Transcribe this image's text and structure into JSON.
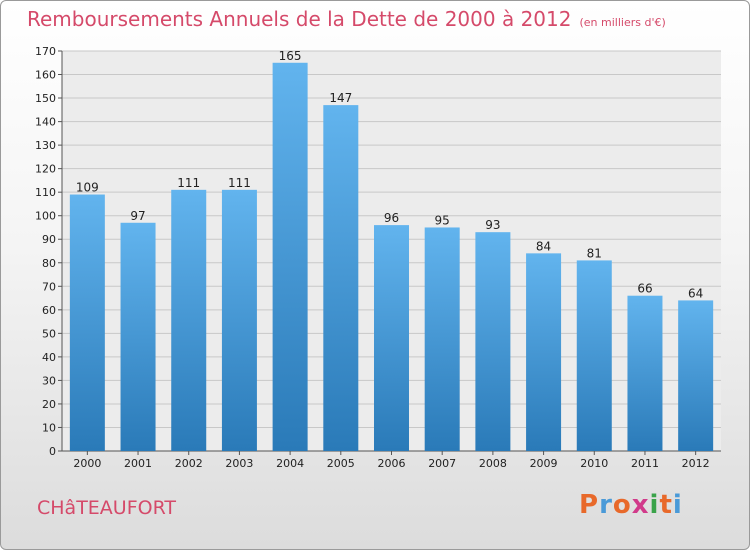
{
  "title": "Remboursements Annuels de la Dette de 2000 à 2012",
  "unit_note": "(en milliers d'€)",
  "city": "CHâTEAUFORT",
  "brand": "Proxiti",
  "colors": {
    "title": "#d54a6a",
    "bar_top": "#62b4ee",
    "bar_bottom": "#2a7ab8",
    "brand_letters": [
      "#e8692a",
      "#4a9ad8",
      "#e8692a",
      "#d13a8a",
      "#3aa34a",
      "#e8692a",
      "#4a9ad8"
    ]
  },
  "chart_data": {
    "type": "bar",
    "categories": [
      "2000",
      "2001",
      "2002",
      "2003",
      "2004",
      "2005",
      "2006",
      "2007",
      "2008",
      "2009",
      "2010",
      "2011",
      "2012"
    ],
    "values": [
      109,
      97,
      111,
      111,
      165,
      147,
      96,
      95,
      93,
      84,
      81,
      66,
      64
    ],
    "ylim": [
      0,
      170
    ],
    "yticks": [
      0,
      10,
      20,
      30,
      40,
      50,
      60,
      70,
      80,
      90,
      100,
      110,
      120,
      130,
      140,
      150,
      160,
      170
    ],
    "grid": true,
    "xlabel": "",
    "ylabel": ""
  }
}
